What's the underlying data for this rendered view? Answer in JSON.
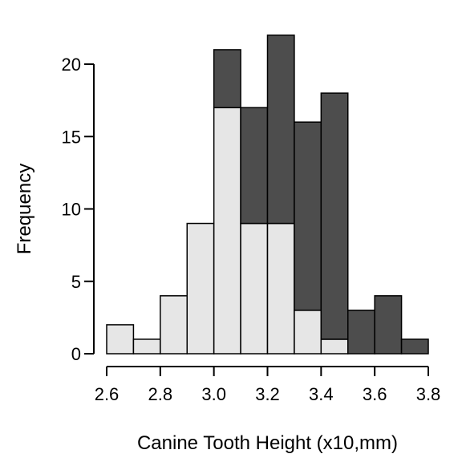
{
  "chart_data": {
    "type": "bar",
    "subtype": "stacked-histogram",
    "xlabel": "Canine Tooth Height (x10,mm)",
    "ylabel": "Frequency",
    "bin_edges": [
      2.6,
      2.7,
      2.8,
      2.9,
      3.0,
      3.1,
      3.2,
      3.3,
      3.4,
      3.5,
      3.6,
      3.7,
      3.8
    ],
    "series": [
      {
        "fill": "#e6e6e6",
        "values": [
          2,
          1,
          4,
          9,
          17,
          9,
          9,
          3,
          1,
          0,
          0,
          0
        ]
      },
      {
        "fill": "#4d4d4d",
        "values": [
          0,
          0,
          0,
          0,
          4,
          8,
          13,
          13,
          17,
          3,
          4,
          1
        ]
      }
    ],
    "totals": [
      2,
      1,
      4,
      9,
      21,
      17,
      22,
      16,
      18,
      3,
      4,
      1
    ],
    "xlim": [
      2.6,
      3.8
    ],
    "ylim": [
      0,
      22
    ],
    "xticks": [
      "2.6",
      "2.8",
      "3.0",
      "3.2",
      "3.4",
      "3.6",
      "3.8"
    ],
    "yticks": [
      "0",
      "5",
      "10",
      "15",
      "20"
    ],
    "grid": false,
    "legend": "none"
  }
}
